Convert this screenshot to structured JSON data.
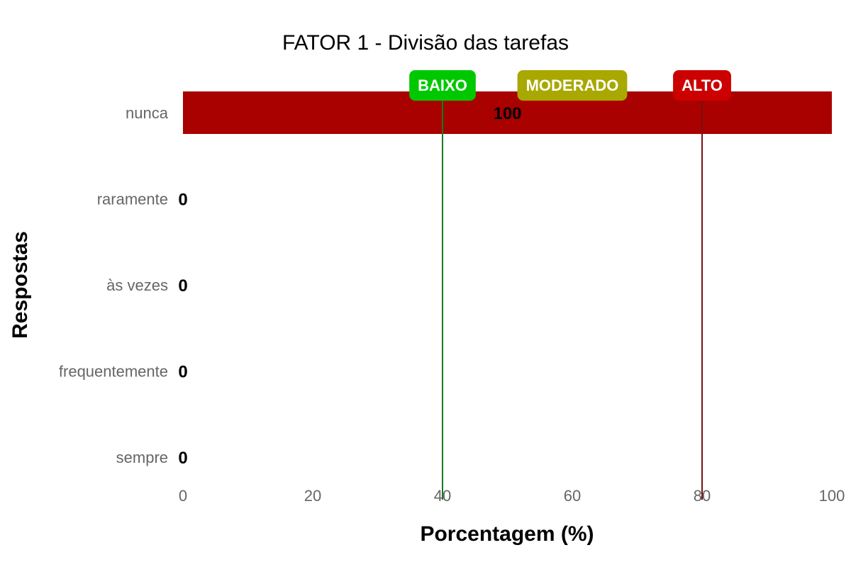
{
  "chart_data": {
    "type": "bar",
    "orientation": "horizontal",
    "title": "FATOR 1 - Divisão das tarefas",
    "xlabel": "Porcentagem (%)",
    "ylabel": "Respostas",
    "categories": [
      "nunca",
      "raramente",
      "às vezes",
      "frequentemente",
      "sempre"
    ],
    "values": [
      100,
      0,
      0,
      0,
      0
    ],
    "value_labels": [
      "100",
      "0",
      "0",
      "0",
      "0"
    ],
    "xlim": [
      0,
      100
    ],
    "xticks": [
      "0",
      "20",
      "40",
      "60",
      "80",
      "100"
    ],
    "bar_color": "#a90000",
    "grid": false,
    "thresholds": [
      {
        "value": 40,
        "line_color": "#1a7a1a"
      },
      {
        "value": 80,
        "line_color": "#7a1010"
      }
    ],
    "badges": [
      {
        "label": "BAIXO",
        "color": "#00c800",
        "center": 40
      },
      {
        "label": "MODERADO",
        "color": "#a8a800",
        "center": 60
      },
      {
        "label": "ALTO",
        "color": "#cc0000",
        "center": 80
      }
    ]
  }
}
